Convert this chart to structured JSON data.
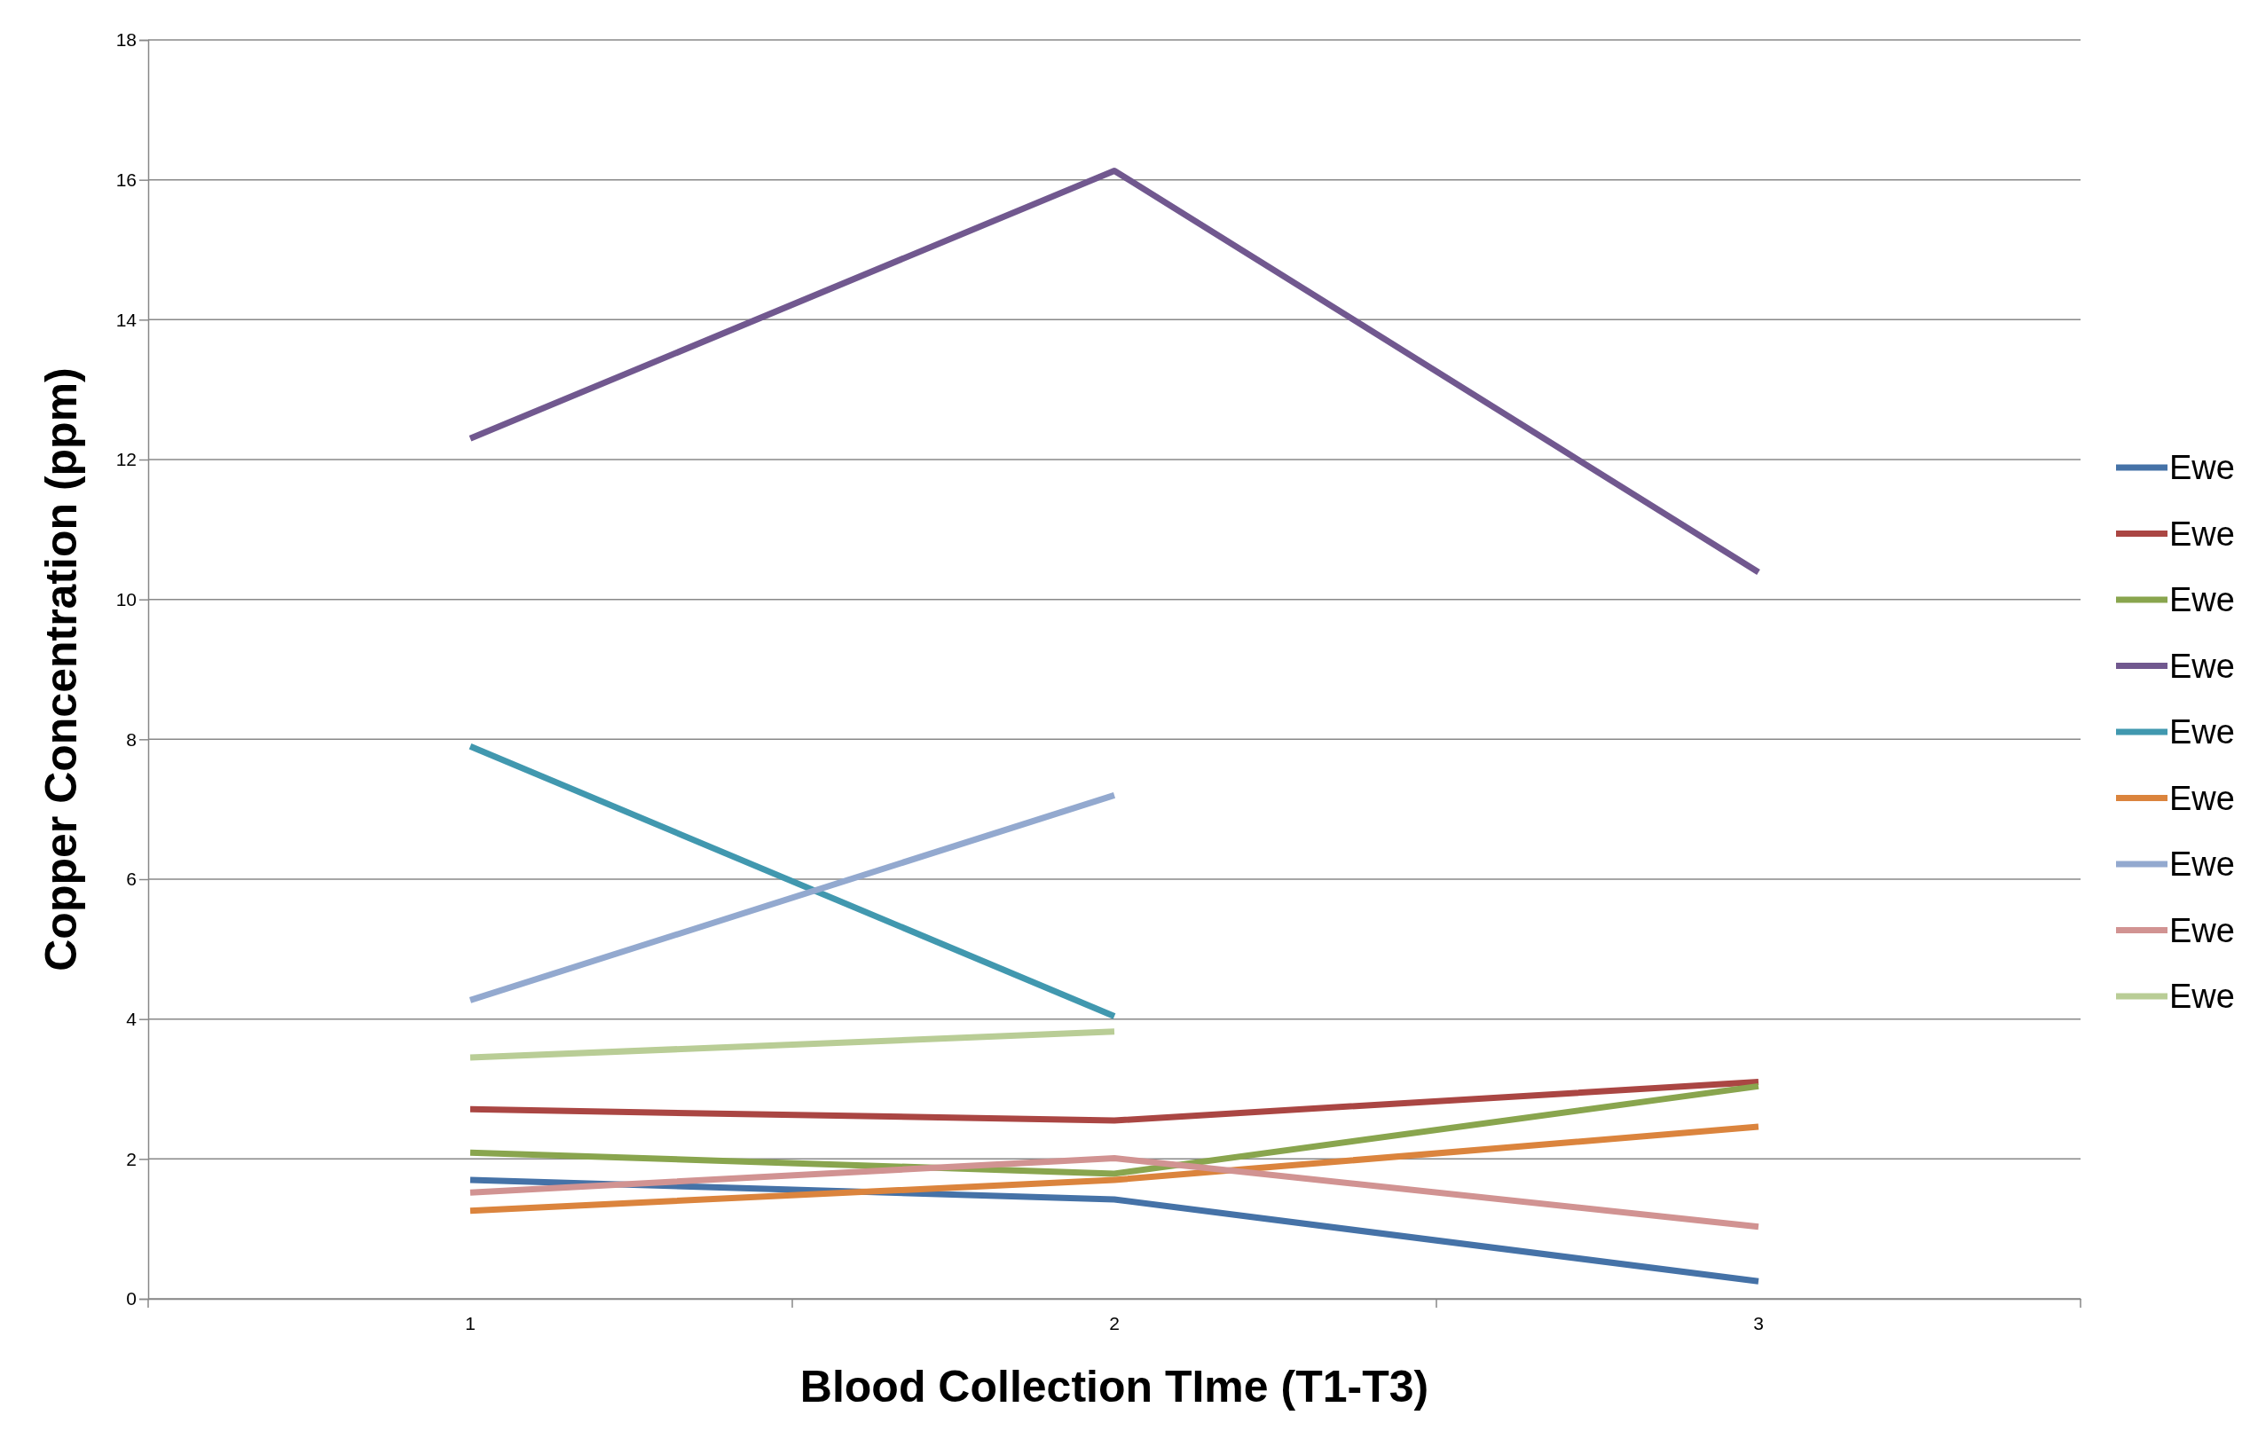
{
  "chart_data": {
    "type": "line",
    "xlabel": "Blood Collection TIme (T1-T3)",
    "ylabel": "Copper Concentration (ppm)",
    "categories": [
      "1",
      "2",
      "3"
    ],
    "ylim": [
      0,
      18
    ],
    "yticks": [
      0,
      2,
      4,
      6,
      8,
      10,
      12,
      14,
      16,
      18
    ],
    "grid": "y",
    "legend": "right",
    "marker": "none",
    "line_style": "solid",
    "series": [
      {
        "name": "Ewe",
        "color": "#4572a7",
        "values": [
          1.7,
          1.42,
          0.25
        ]
      },
      {
        "name": "Ewe",
        "color": "#aa4643",
        "values": [
          2.71,
          2.55,
          3.1
        ]
      },
      {
        "name": "Ewe",
        "color": "#89a54e",
        "values": [
          2.09,
          1.79,
          3.04
        ]
      },
      {
        "name": "Ewe",
        "color": "#71588f",
        "values": [
          12.3,
          16.13,
          10.39
        ]
      },
      {
        "name": "Ewe",
        "color": "#4198af",
        "values": [
          7.9,
          4.04,
          null
        ]
      },
      {
        "name": "Ewe",
        "color": "#db843d",
        "values": [
          1.26,
          1.7,
          2.46
        ]
      },
      {
        "name": "Ewe",
        "color": "#93a9cf",
        "values": [
          4.27,
          7.2,
          null
        ]
      },
      {
        "name": "Ewe",
        "color": "#d19392",
        "values": [
          1.52,
          2.01,
          1.03
        ]
      },
      {
        "name": "Ewe",
        "color": "#b9cd96",
        "values": [
          3.45,
          3.82,
          null
        ]
      }
    ]
  }
}
